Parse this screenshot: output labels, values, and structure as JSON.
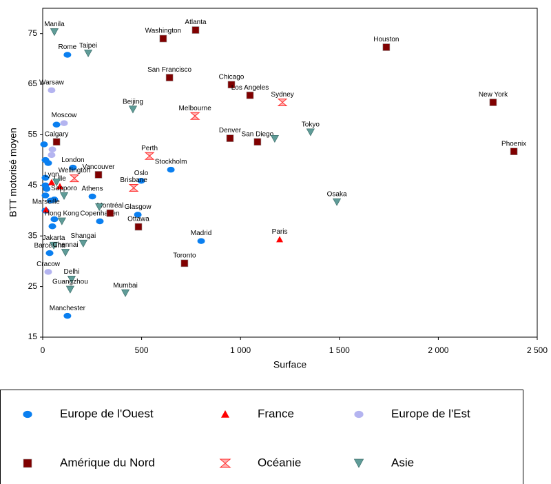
{
  "chart_data": {
    "type": "scatter",
    "x_label": "Surface",
    "y_label": "BTT motorisé moyen",
    "xlim": [
      0,
      2500
    ],
    "ylim": [
      15,
      80
    ],
    "xticks": [
      0,
      500,
      {
        "value": 1000,
        "label": "1 000"
      },
      {
        "value": 1500,
        "label": "1 500"
      },
      {
        "value": 2000,
        "label": "2 000"
      },
      {
        "value": 2500,
        "label": "2 500"
      }
    ],
    "yticks": [
      15,
      25,
      35,
      45,
      55,
      65,
      75
    ],
    "grid": false,
    "series": [
      {
        "name": "Europe de l'Ouest",
        "color": "#0a7ff0",
        "marker": "ellipse",
        "x": [
          125,
          70,
          7,
          14,
          28,
          153,
          648,
          14,
          498,
          14,
          20,
          251,
          14,
          59,
          40,
          481,
          14,
          59,
          289,
          49,
          801,
          35,
          125
        ],
        "values": [
          70.8,
          57.0,
          53.1,
          50.0,
          49.4,
          48.5,
          48.1,
          46.5,
          45.9,
          45.0,
          44.3,
          42.8,
          43.0,
          42.2,
          42.0,
          39.2,
          40.0,
          38.3,
          37.9,
          36.9,
          34.0,
          31.6,
          19.2
        ],
        "labels": [
          "Rome",
          null,
          null,
          null,
          null,
          "London",
          "Stockholm",
          null,
          "Oslo",
          null,
          null,
          "Athens",
          null,
          null,
          null,
          "Glasgow",
          null,
          null,
          "Copenhagen",
          null,
          "Madrid",
          "Barcelona",
          "Manchester"
        ]
      },
      {
        "name": "France",
        "color": "#ff0000",
        "marker": "triangle",
        "x": [
          45,
          87,
          17,
          1198
        ],
        "values": [
          45.6,
          44.8,
          40.2,
          34.3
        ],
        "labels": [
          "Lyon",
          "Lille",
          "Marseille",
          "Paris"
        ]
      },
      {
        "name": "Europe de l'Est",
        "color": "#b4b4f0",
        "marker": "ellipse",
        "x": [
          45,
          108,
          49,
          45,
          28
        ],
        "values": [
          63.8,
          57.3,
          52.1,
          51.0,
          27.9
        ],
        "labels": [
          "Warsaw",
          "Moscow",
          null,
          null,
          "Cracow"
        ]
      },
      {
        "name": "Amérique du Nord",
        "color": "#800000",
        "marker": "square",
        "x": [
          773,
          609,
          1737,
          641,
          954,
          1048,
          2277,
          947,
          1086,
          2382,
          70,
          282,
          341,
          484,
          717
        ],
        "values": [
          75.7,
          74.0,
          72.3,
          66.3,
          64.9,
          62.8,
          61.4,
          54.3,
          53.6,
          51.7,
          53.6,
          47.1,
          39.5,
          36.8,
          29.6
        ],
        "labels": [
          "Atlanta",
          "Washington",
          "Houston",
          "San Francisco",
          "Chicago",
          "Los Angeles",
          "New York",
          "Denver",
          "San Diego",
          "Phoenix",
          "Calgary",
          "Vancouver",
          "Montréal",
          "Ottawa",
          "Toronto"
        ]
      },
      {
        "name": "Océanie",
        "color": "#ff3030",
        "marker": "hourglass",
        "x": [
          1212,
          770,
          540,
          160,
          460
        ],
        "values": [
          61.4,
          58.7,
          50.8,
          46.4,
          44.5
        ],
        "labels": [
          "Sydney",
          "Melbourne",
          "Perth",
          "Wellington",
          "Brisbane"
        ]
      },
      {
        "name": "Asie",
        "color": "#5f9c98",
        "marker": "triangle-down",
        "x": [
          59,
          230,
          456,
          1354,
          1173,
          108,
          1487,
          286,
          205,
          97,
          56,
          115,
          146,
          139,
          418,
          70
        ],
        "values": [
          75.3,
          71.1,
          60.0,
          55.5,
          54.2,
          42.9,
          41.7,
          40.7,
          33.5,
          37.9,
          33.1,
          31.7,
          26.4,
          24.4,
          23.7,
          45.6
        ],
        "labels": [
          "Manila",
          "Taipei",
          "Beijing",
          "Tokyo",
          null,
          "Sapporo",
          "Osaka",
          null,
          "Shangai",
          "Hong Kong",
          "Jakarta",
          "Chennai",
          "Delhi",
          "Guangzhou",
          "Mumbai",
          null
        ]
      }
    ]
  }
}
